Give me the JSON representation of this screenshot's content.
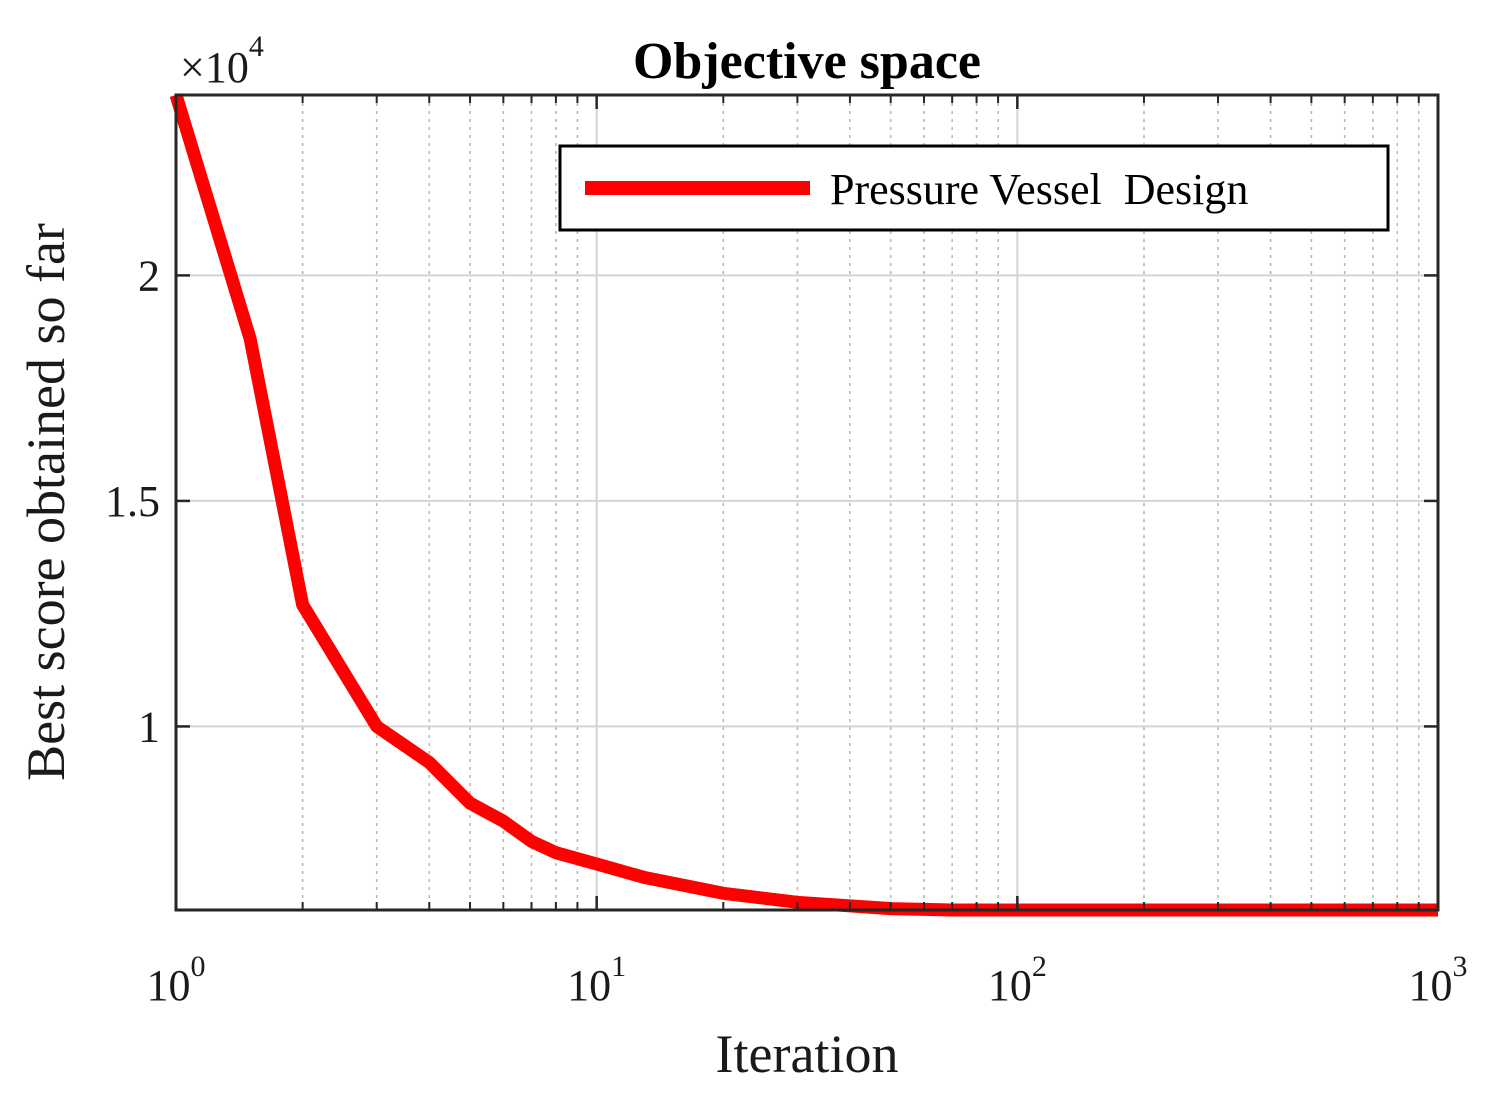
{
  "chart_data": {
    "type": "line",
    "title": "Objective space",
    "xlabel": "Iteration",
    "ylabel": "Best score obtained so far",
    "xscale": "log",
    "xlim": [
      1,
      1000
    ],
    "ylim": [
      5930,
      24000
    ],
    "y_multiplier": {
      "base": "×10",
      "exponent": "4"
    },
    "x_ticks": [
      {
        "value": 1,
        "base": "10",
        "exp": "0"
      },
      {
        "value": 10,
        "base": "10",
        "exp": "1"
      },
      {
        "value": 100,
        "base": "10",
        "exp": "2"
      },
      {
        "value": 1000,
        "base": "10",
        "exp": "3"
      }
    ],
    "y_ticks": [
      {
        "value": 10000,
        "label": "1"
      },
      {
        "value": 15000,
        "label": "1.5"
      },
      {
        "value": 20000,
        "label": "2"
      }
    ],
    "grid": true,
    "legend_position": "top-right",
    "series": [
      {
        "name": "Pressure Vessel  Design",
        "color": "#ff0000",
        "x": [
          1,
          1.5,
          2,
          3,
          4,
          5,
          6,
          7,
          8,
          10,
          13,
          20,
          30,
          50,
          70,
          100,
          200,
          500,
          1000
        ],
        "y": [
          24000,
          18600,
          12700,
          10000,
          9200,
          8300,
          7900,
          7450,
          7200,
          6950,
          6650,
          6300,
          6100,
          5960,
          5930,
          5930,
          5930,
          5930,
          5930
        ]
      }
    ]
  }
}
